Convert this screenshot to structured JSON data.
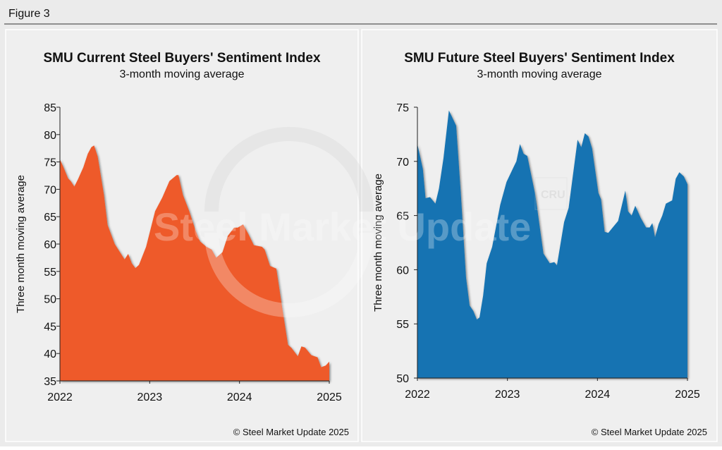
{
  "figure_label": "Figure 3",
  "watermark": "Steel Market Update",
  "watermark_small": "CRU",
  "chart_data": [
    {
      "type": "area",
      "title": "SMU Current Steel Buyers' Sentiment Index",
      "subtitle": "3-month moving average",
      "ylabel": "Three month moving average",
      "xlabel": "",
      "xlim": [
        2022,
        2025
      ],
      "ylim": [
        35,
        85
      ],
      "xticks": [
        "2022",
        "2023",
        "2024",
        "2025"
      ],
      "yticks": [
        "35",
        "40",
        "45",
        "50",
        "55",
        "60",
        "65",
        "70",
        "75",
        "80",
        "85"
      ],
      "grid": false,
      "color": "#ee5a2a",
      "footer": "© Steel Market Update 2025",
      "x": [
        2022.0,
        2022.04,
        2022.09,
        2022.12,
        2022.16,
        2022.2,
        2022.26,
        2022.31,
        2022.35,
        2022.38,
        2022.42,
        2022.49,
        2022.53,
        2022.61,
        2022.72,
        2022.76,
        2022.8,
        2022.84,
        2022.88,
        2022.96,
        2023.06,
        2023.14,
        2023.22,
        2023.3,
        2023.32,
        2023.37,
        2023.44,
        2023.51,
        2023.56,
        2023.63,
        2023.69,
        2023.74,
        2023.81,
        2023.87,
        2023.94,
        2023.98,
        2024.04,
        2024.1,
        2024.16,
        2024.25,
        2024.28,
        2024.34,
        2024.41,
        2024.47,
        2024.54,
        2024.58,
        2024.65,
        2024.69,
        2024.73,
        2024.8,
        2024.87,
        2024.91,
        2024.96,
        2025.0
      ],
      "y": [
        75.5,
        74,
        72,
        71.5,
        70.5,
        71.8,
        74,
        76.5,
        77.7,
        78,
        76,
        69,
        63.5,
        60,
        57.2,
        58.2,
        56.5,
        55.6,
        56.2,
        59.5,
        66,
        68.5,
        71.5,
        72.6,
        72.6,
        69,
        66,
        62.5,
        60.5,
        59.5,
        59,
        57.5,
        58.5,
        61.5,
        63,
        63,
        63.6,
        61.8,
        59.8,
        59.5,
        59,
        56,
        55.5,
        49,
        41.6,
        41,
        39.5,
        41.3,
        41.1,
        39.7,
        39.3,
        37.5,
        37.8,
        38.5
      ]
    },
    {
      "type": "area",
      "title": "SMU Future Steel Buyers' Sentiment Index",
      "subtitle": "3-month moving average",
      "ylabel": "Three month moving average",
      "xlabel": "",
      "xlim": [
        2022,
        2025
      ],
      "ylim": [
        50,
        75
      ],
      "xticks": [
        "2022",
        "2023",
        "2024",
        "2025"
      ],
      "yticks": [
        "50",
        "55",
        "60",
        "65",
        "70",
        "75"
      ],
      "grid": false,
      "color": "#1273b2",
      "footer": "© Steel Market Update 2025",
      "x": [
        2022.0,
        2022.06,
        2022.09,
        2022.14,
        2022.2,
        2022.24,
        2022.29,
        2022.35,
        2022.43,
        2022.48,
        2022.54,
        2022.58,
        2022.62,
        2022.66,
        2022.69,
        2022.73,
        2022.77,
        2022.83,
        2022.92,
        2022.99,
        2023.07,
        2023.1,
        2023.14,
        2023.18,
        2023.22,
        2023.31,
        2023.4,
        2023.47,
        2023.52,
        2023.55,
        2023.63,
        2023.68,
        2023.78,
        2023.82,
        2023.86,
        2023.9,
        2023.94,
        2024.01,
        2024.04,
        2024.08,
        2024.12,
        2024.17,
        2024.23,
        2024.31,
        2024.34,
        2024.38,
        2024.42,
        2024.48,
        2024.54,
        2024.58,
        2024.61,
        2024.64,
        2024.68,
        2024.72,
        2024.76,
        2024.83,
        2024.87,
        2024.91,
        2024.96,
        2025.0
      ],
      "y": [
        71.6,
        69.3,
        66.6,
        66.7,
        66.1,
        67.5,
        70.3,
        74.7,
        73.3,
        67.3,
        59.3,
        56.7,
        56.2,
        55.4,
        55.6,
        57.6,
        60.6,
        62.1,
        66.0,
        68.1,
        69.5,
        70.0,
        71.6,
        70.7,
        70.5,
        66.9,
        61.5,
        60.6,
        60.7,
        60.4,
        64.4,
        65.7,
        72.0,
        71.3,
        72.6,
        72.3,
        71.2,
        67.1,
        66.5,
        63.5,
        63.4,
        63.9,
        64.5,
        67.3,
        65.4,
        65.0,
        65.9,
        64.8,
        63.9,
        63.9,
        64.3,
        63.0,
        64.2,
        65.0,
        66.1,
        66.4,
        68.4,
        69.0,
        68.6,
        67.9
      ]
    }
  ]
}
